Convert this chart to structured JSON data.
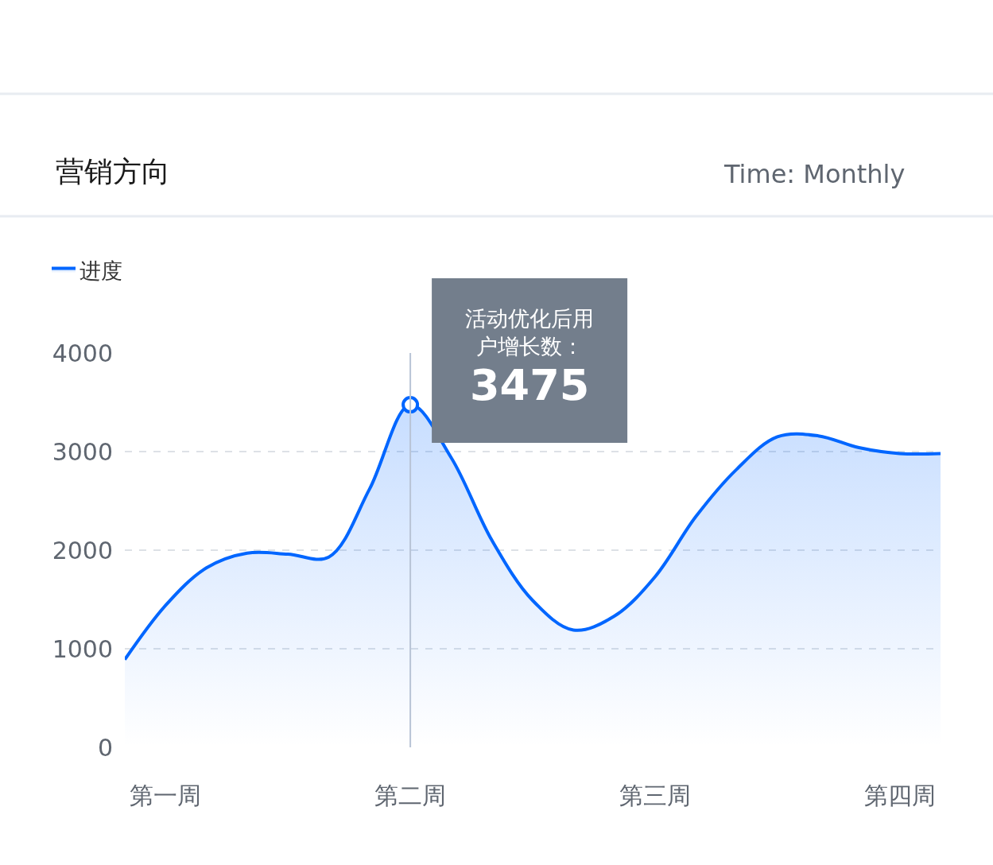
{
  "chart_data": {
    "type": "area",
    "title": "营销方向",
    "subtitle": "Time: Monthly",
    "categories": [
      null,
      "第一周",
      null,
      null,
      null,
      null,
      null,
      "第二周",
      null,
      null,
      null,
      null,
      null,
      "第三周",
      null,
      null,
      null,
      null,
      null,
      "第四周",
      null
    ],
    "series": [
      {
        "name": "进度",
        "color": "#0066ff",
        "values": [
          890,
          1440,
          1820,
          1970,
          1960,
          1930,
          2620,
          3475,
          2940,
          2100,
          1490,
          1190,
          1330,
          1730,
          2340,
          2820,
          3150,
          3160,
          3040,
          2980,
          2980
        ],
        "value_labels": [
          null,
          null,
          null,
          null,
          null,
          null,
          null,
          "3475",
          null,
          null,
          null,
          null,
          null,
          null,
          null,
          null,
          null,
          null,
          null,
          null,
          null
        ]
      }
    ],
    "annotations": [
      "活动优化后用户增长数："
    ],
    "ref_lines": [
      {
        "axis": "x",
        "value": "第二周",
        "color": "#b8c4d6"
      }
    ],
    "ylim": [
      0,
      4000
    ],
    "yticks": [
      0,
      1000,
      2000,
      3000,
      4000
    ],
    "grid": "y",
    "legend": "top left",
    "marker": "none",
    "line_style": "solid"
  }
}
